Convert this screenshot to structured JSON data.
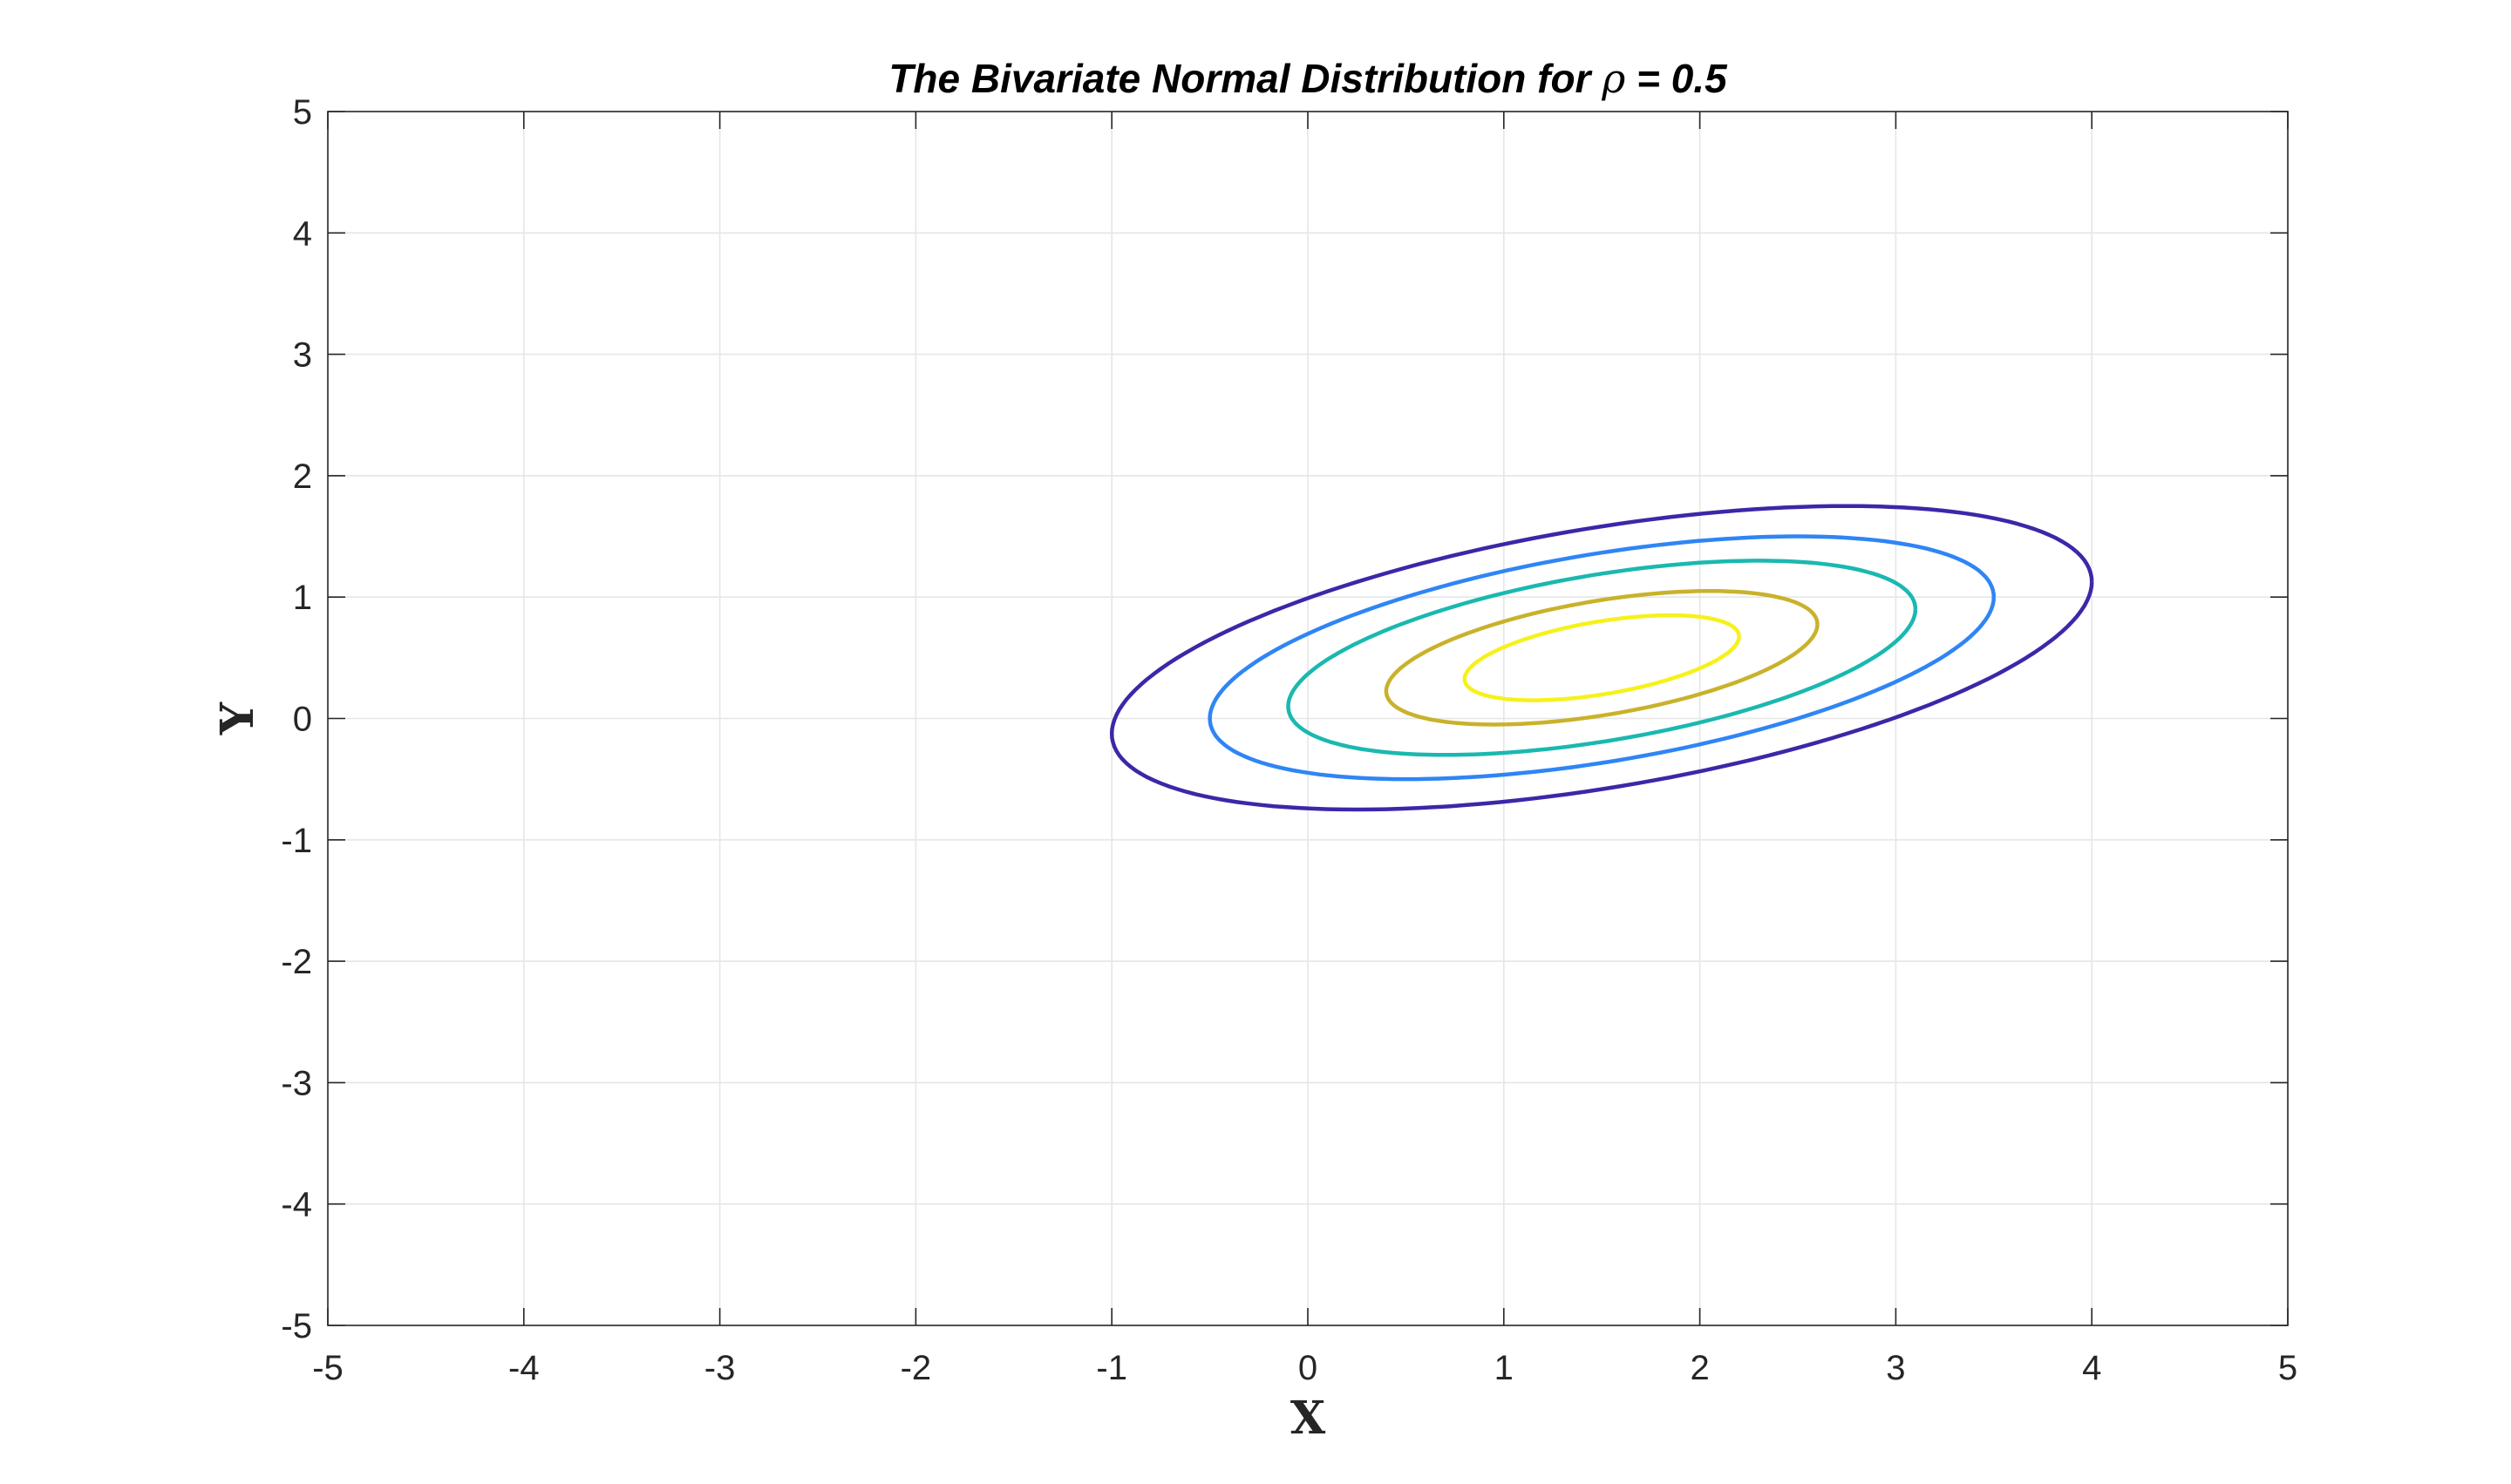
{
  "chart_data": {
    "type": "contour",
    "title": {
      "before": "The Bivariate Normal Distribution for ",
      "symbol": "ρ",
      "after": " = 0.5"
    },
    "xlabel": "X",
    "ylabel": "Y",
    "xlim": [
      -5,
      5
    ],
    "ylim": [
      -5,
      5
    ],
    "xticks": [
      -5,
      -4,
      -3,
      -2,
      -1,
      0,
      1,
      2,
      3,
      4,
      5
    ],
    "yticks": [
      -5,
      -4,
      -3,
      -2,
      -1,
      0,
      1,
      2,
      3,
      4,
      5
    ],
    "xtick_labels": [
      "-5",
      "-4",
      "-3",
      "-2",
      "-1",
      "0",
      "1",
      "2",
      "3",
      "4",
      "5"
    ],
    "ytick_labels": [
      "-5",
      "-4",
      "-3",
      "-2",
      "-1",
      "0",
      "1",
      "2",
      "3",
      "4",
      "5"
    ],
    "grid": true,
    "box": true,
    "distribution": {
      "mean": [
        1.5,
        0.5
      ],
      "sigma_x": 1.0,
      "sigma_y": 0.5,
      "rho": 0.5
    },
    "contour_levels": [
      {
        "mahalanobis_radius": 2.5,
        "color": "#3e26a8"
      },
      {
        "mahalanobis_radius": 2.0,
        "color": "#2f85f5"
      },
      {
        "mahalanobis_radius": 1.6,
        "color": "#1ab8b0"
      },
      {
        "mahalanobis_radius": 1.1,
        "color": "#c9b22b"
      },
      {
        "mahalanobis_radius": 0.7,
        "color": "#f6f11b"
      }
    ]
  }
}
